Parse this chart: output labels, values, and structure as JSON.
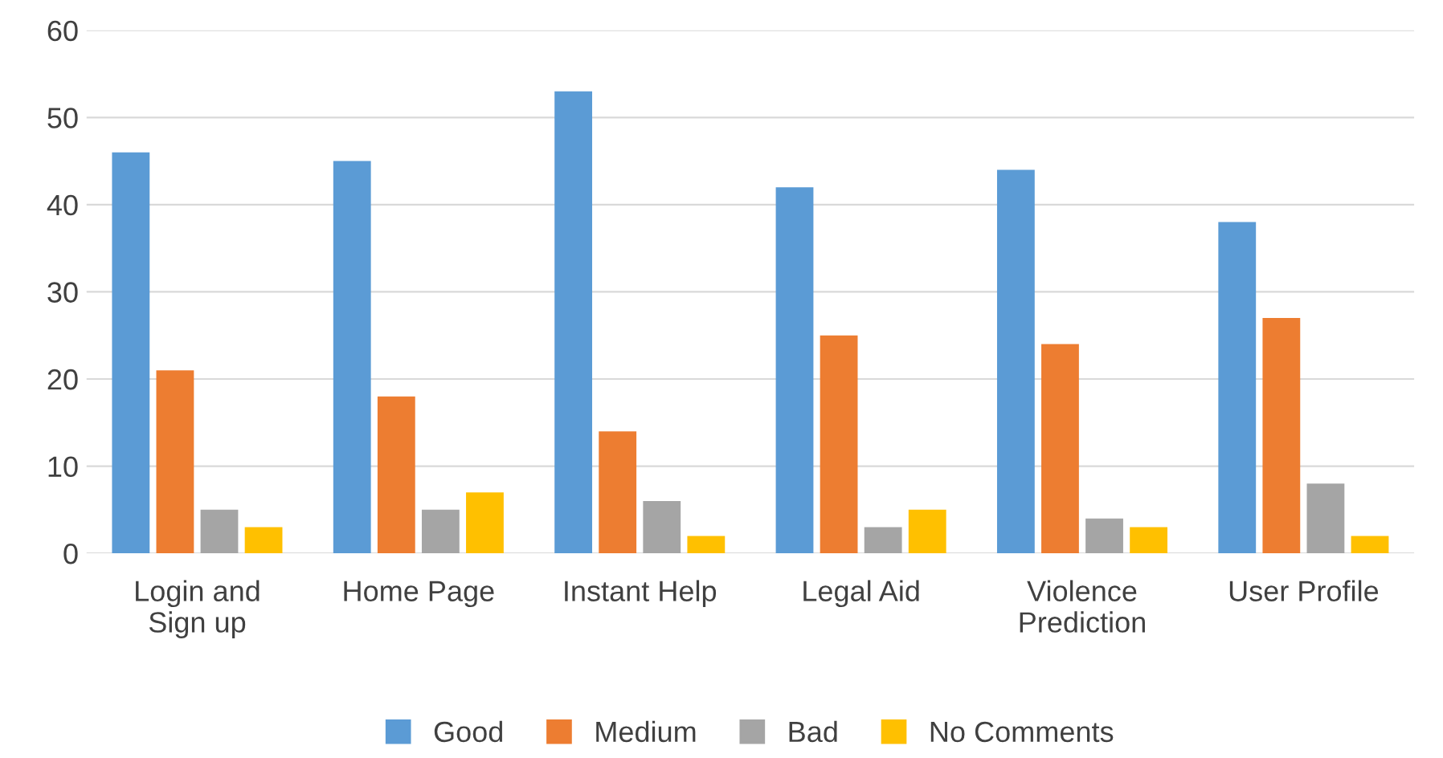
{
  "chart_data": {
    "type": "bar",
    "categories": [
      "Login and\nSign up",
      "Home Page",
      "Instant Help",
      "Legal Aid",
      "Violence\nPrediction",
      "User Profile"
    ],
    "series": [
      {
        "name": "Good",
        "color": "#5b9bd5",
        "values": [
          46,
          45,
          53,
          42,
          44,
          38
        ]
      },
      {
        "name": "Medium",
        "color": "#ed7d31",
        "values": [
          21,
          18,
          14,
          25,
          24,
          27
        ]
      },
      {
        "name": "Bad",
        "color": "#a5a5a5",
        "values": [
          5,
          5,
          6,
          3,
          4,
          8
        ]
      },
      {
        "name": "No Comments",
        "color": "#ffc000",
        "values": [
          3,
          7,
          2,
          5,
          3,
          2
        ]
      }
    ],
    "ylim": [
      0,
      60
    ],
    "yticks": [
      0,
      10,
      20,
      30,
      40,
      50,
      60
    ],
    "grid": "y",
    "legend": "bottom"
  }
}
